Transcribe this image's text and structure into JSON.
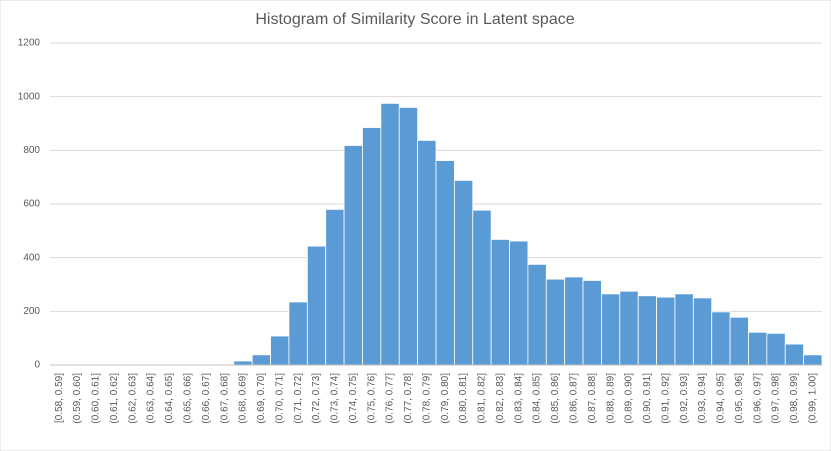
{
  "chart_data": {
    "type": "bar",
    "title": "Histogram of Similarity Score in Latent space",
    "categories": [
      "[0.58, 0.59]",
      "(0.59, 0.60]",
      "(0.60, 0.61]",
      "(0.61, 0.62]",
      "(0.62, 0.63]",
      "(0.63, 0.64]",
      "(0.64, 0.65]",
      "(0.65, 0.66]",
      "(0.66, 0.67]",
      "(0.67, 0.68]",
      "(0.68, 0.69]",
      "(0.69, 0.70]",
      "(0.70, 0.71]",
      "(0.71, 0.72]",
      "(0.72, 0.73]",
      "(0.73, 0.74]",
      "(0.74, 0.75]",
      "(0.75, 0.76]",
      "(0.76, 0.77]",
      "(0.77, 0.78]",
      "(0.78, 0.79]",
      "(0.79, 0.80]",
      "(0.80, 0.81]",
      "(0.81, 0.82]",
      "(0.82, 0.83]",
      "(0.83, 0.84]",
      "(0.84, 0.85]",
      "(0.85, 0.86]",
      "(0.86, 0.87]",
      "(0.87, 0.88]",
      "(0.88, 0.89]",
      "(0.89, 0.90]",
      "(0.90, 0.91]",
      "(0.91, 0.92]",
      "(0.92, 0.93]",
      "(0.93, 0.94]",
      "(0.94, 0.95]",
      "(0.95, 0.96]",
      "(0.96, 0.97]",
      "(0.97, 0.98]",
      "(0.98, 0.99]",
      "(0.99, 1.00]"
    ],
    "values": [
      0,
      0,
      0,
      0,
      0,
      0,
      0,
      0,
      0,
      0,
      15,
      38,
      108,
      235,
      443,
      580,
      818,
      885,
      975,
      960,
      837,
      762,
      688,
      577,
      468,
      462,
      375,
      320,
      328,
      315,
      265,
      275,
      258,
      253,
      265,
      250,
      198,
      178,
      122,
      118,
      78,
      38
    ],
    "color": "#5b9bd5",
    "ylim": [
      0,
      1200
    ],
    "yticks": [
      0,
      200,
      400,
      600,
      800,
      1000,
      1200
    ],
    "grid": true
  }
}
